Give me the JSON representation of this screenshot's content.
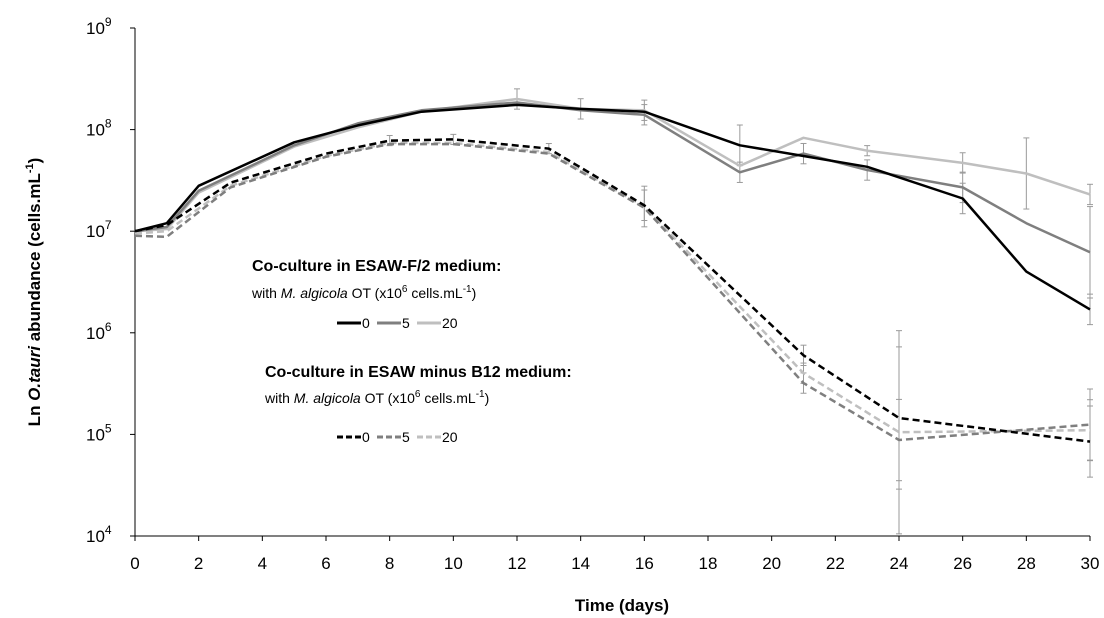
{
  "chart_data": {
    "type": "line",
    "title": "",
    "xlabel": "Time (days)",
    "ylabel": {
      "prefix": "Ln ",
      "italic": "O.tauri",
      "suffix": " abundance (cells.mL",
      "sup": "-1",
      "close": ")"
    },
    "xlim": [
      0,
      30
    ],
    "xticks": [
      0,
      2,
      4,
      6,
      8,
      10,
      12,
      14,
      16,
      18,
      20,
      22,
      24,
      26,
      28,
      30
    ],
    "y_scale": "log",
    "ylim": [
      10000,
      1000000000
    ],
    "yticks": [
      {
        "base": "10",
        "exp": "4",
        "value": 10000
      },
      {
        "base": "10",
        "exp": "5",
        "value": 100000
      },
      {
        "base": "10",
        "exp": "6",
        "value": 1000000
      },
      {
        "base": "10",
        "exp": "7",
        "value": 10000000
      },
      {
        "base": "10",
        "exp": "8",
        "value": 100000000
      },
      {
        "base": "10",
        "exp": "9",
        "value": 1000000000
      }
    ],
    "grid": false,
    "legend_groups": [
      {
        "heading": "Co-culture in ESAW-F/2 medium:",
        "sub": {
          "pre": "with ",
          "italic": "M. algicola",
          "mid": " OT (x10",
          "sup": "6",
          "post": " cells.mL",
          "sup2": "-1",
          "close": ")"
        },
        "style": "solid"
      },
      {
        "heading": "Co-culture in ESAW minus B12 medium:",
        "sub": {
          "pre": "with ",
          "italic": "M. algicola",
          "mid": " OT (x10",
          "sup": "6",
          "post": " cells.mL",
          "sup2": "-1",
          "close": ")"
        },
        "style": "dashed"
      }
    ],
    "series": [
      {
        "name": "0",
        "group": "ESAW-F/2",
        "color": "#000000",
        "dash": false,
        "x": [
          0,
          1,
          2,
          5,
          7,
          9,
          12,
          14,
          16,
          19,
          21,
          23,
          26,
          28,
          30
        ],
        "y": [
          10000000,
          12000000,
          28000000,
          75000000,
          110000000,
          150000000,
          175000000,
          160000000,
          150000000,
          70000000,
          55000000,
          43000000,
          21000000,
          4000000,
          1700000
        ],
        "err": [
          0,
          0,
          0,
          0,
          0,
          0,
          0,
          0,
          0,
          0.2,
          0,
          0,
          0.15,
          0,
          0.15
        ]
      },
      {
        "name": "5",
        "group": "ESAW-F/2",
        "color": "#7f7f7f",
        "dash": false,
        "x": [
          0,
          1,
          2,
          5,
          7,
          9,
          12,
          14,
          16,
          19,
          21,
          23,
          26,
          28,
          30
        ],
        "y": [
          10000000,
          11000000,
          25000000,
          70000000,
          115000000,
          155000000,
          185000000,
          155000000,
          140000000,
          38000000,
          58000000,
          40000000,
          27000000,
          12000000,
          6200000
        ],
        "err": [
          0,
          0,
          0,
          0,
          0,
          0,
          0,
          0,
          0.1,
          0.1,
          0.1,
          0.1,
          0.15,
          0,
          0.45
        ]
      },
      {
        "name": "20",
        "group": "ESAW-F/2",
        "color": "#bfbfbf",
        "dash": false,
        "x": [
          0,
          1,
          2,
          5,
          7,
          9,
          12,
          14,
          16,
          19,
          21,
          23,
          26,
          28,
          30
        ],
        "y": [
          10000000,
          10500000,
          24000000,
          68000000,
          105000000,
          150000000,
          200000000,
          160000000,
          155000000,
          44000000,
          83000000,
          62000000,
          47000000,
          37000000,
          23000000
        ],
        "err": [
          0,
          0,
          0,
          0,
          0,
          0,
          0.1,
          0.1,
          0.1,
          0,
          0,
          0.05,
          0.1,
          0.35,
          0.1
        ]
      },
      {
        "name": "0",
        "group": "ESAW minus B12",
        "color": "#000000",
        "dash": true,
        "x": [
          0,
          1,
          3,
          6,
          8,
          10,
          13,
          16,
          21,
          24,
          30
        ],
        "y": [
          10000000,
          11500000,
          30000000,
          58000000,
          78000000,
          80000000,
          65000000,
          18000000,
          600000,
          145000,
          85000
        ],
        "err": [
          0,
          0,
          0,
          0,
          0.05,
          0.05,
          0.05,
          0.15,
          0.1,
          0.7,
          0.35
        ]
      },
      {
        "name": "5",
        "group": "ESAW minus B12",
        "color": "#7f7f7f",
        "dash": true,
        "x": [
          0,
          1,
          3,
          6,
          8,
          10,
          13,
          16,
          21,
          24,
          30
        ],
        "y": [
          9000000,
          8800000,
          27000000,
          54000000,
          72000000,
          72000000,
          58000000,
          17000000,
          320000,
          88000,
          125000
        ],
        "err": [
          0,
          0,
          0,
          0,
          0,
          0,
          0,
          0,
          0.1,
          0.4,
          0.35
        ]
      },
      {
        "name": "20",
        "group": "ESAW minus B12",
        "color": "#bfbfbf",
        "dash": true,
        "x": [
          0,
          1,
          3,
          6,
          8,
          10,
          13,
          16,
          21,
          24,
          30
        ],
        "y": [
          9500000,
          10000000,
          28000000,
          55000000,
          74000000,
          74000000,
          60000000,
          17500000,
          400000,
          105000,
          110000
        ],
        "err": [
          0,
          0,
          0,
          0,
          0,
          0,
          0,
          0.2,
          0.1,
          1.0,
          0.3
        ]
      }
    ]
  }
}
